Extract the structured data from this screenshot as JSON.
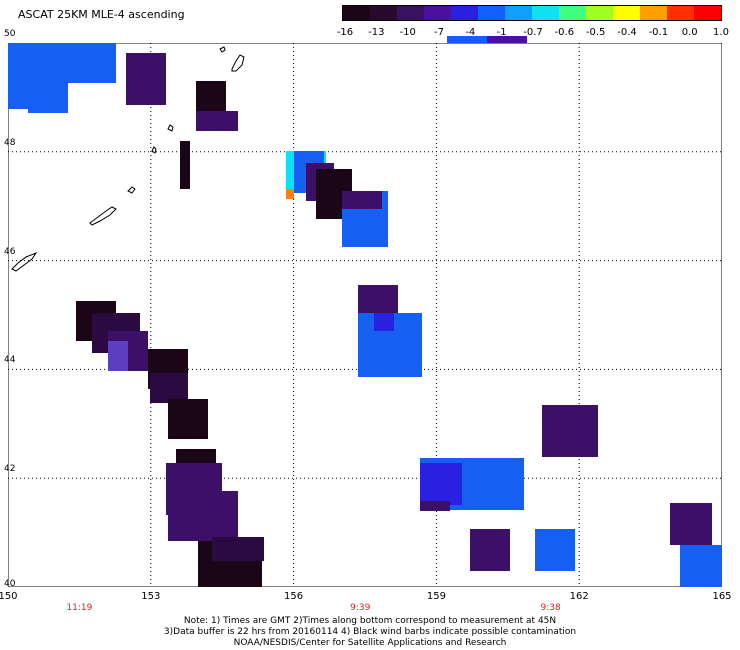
{
  "header": {
    "title": "ASCAT 25KM MLE-4 ascending"
  },
  "colorbar": {
    "tick_labels": [
      "-16",
      "-13",
      "-10",
      "-7",
      "-4",
      "-1",
      "-0.7",
      "-0.6",
      "-0.5",
      "-0.4",
      "-0.1",
      "0.0",
      "1.0"
    ],
    "colors": [
      "#1a0616",
      "#2a0830",
      "#3a1060",
      "#4a10a0",
      "#2a20e0",
      "#1060ff",
      "#10a0ff",
      "#10e0f0",
      "#40ff80",
      "#a0ff20",
      "#ffff00",
      "#ffa000",
      "#ff3000",
      "#ff0000"
    ]
  },
  "map": {
    "lon_labels": [
      "150",
      "153",
      "156",
      "159",
      "162",
      "165"
    ],
    "lat_labels": [
      "50",
      "48",
      "46",
      "44",
      "42",
      "40"
    ],
    "time_labels": [
      {
        "text": "11:19",
        "lon": 151.5
      },
      {
        "text": "9:39",
        "lon": 157.4
      },
      {
        "text": "9:38",
        "lon": 161.4
      }
    ]
  },
  "footer": {
    "note_line1": "Note: 1) Times are GMT 2)Times along bottom correspond to measurement at 45N",
    "note_line2": "3)Data buffer is 22 hrs from 20160114 4) Black wind barbs indicate possible contamination",
    "note_line3": "NOAA/NESDIS/Center for Satellite Applications and Research"
  }
}
